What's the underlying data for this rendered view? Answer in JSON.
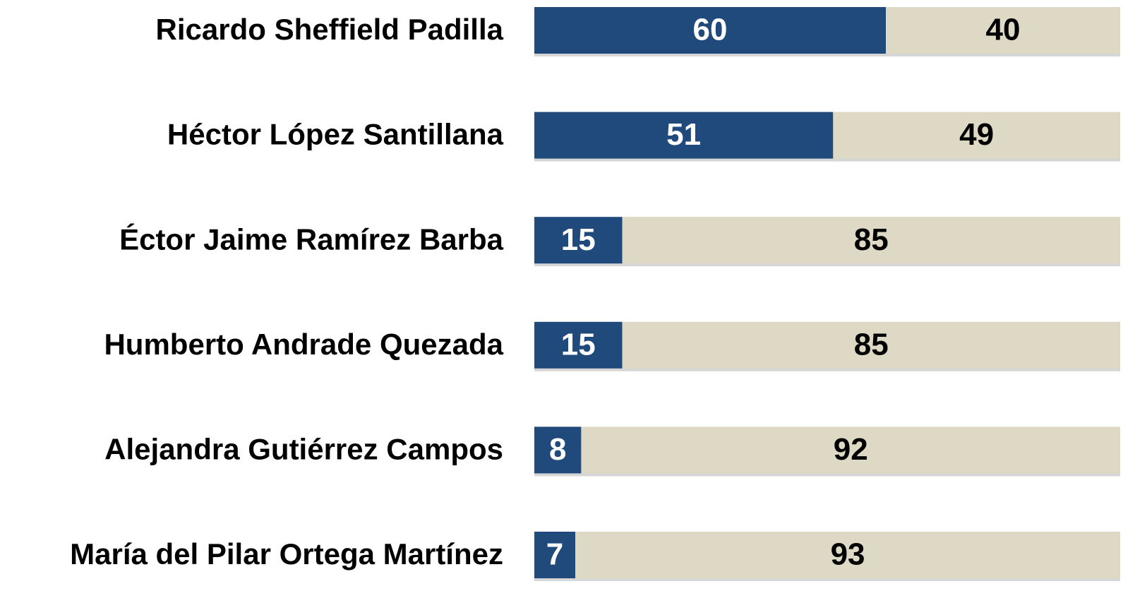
{
  "chart_data": {
    "type": "stacked-bar-horizontal",
    "categories": [
      "Ricardo Sheffield Padilla",
      "Héctor López Santillana",
      "Éctor Jaime Ramírez Barba",
      "Humberto Andrade Quezada",
      "Alejandra Gutiérrez Campos",
      "María del Pilar Ortega Martínez"
    ],
    "series": [
      {
        "color": "#214a7c",
        "label_color": "#ffffff",
        "values": [
          60,
          51,
          15,
          15,
          8,
          7
        ]
      },
      {
        "color": "#ddd9c4",
        "label_color": "#000000",
        "values": [
          40,
          49,
          85,
          85,
          92,
          93
        ]
      }
    ]
  }
}
